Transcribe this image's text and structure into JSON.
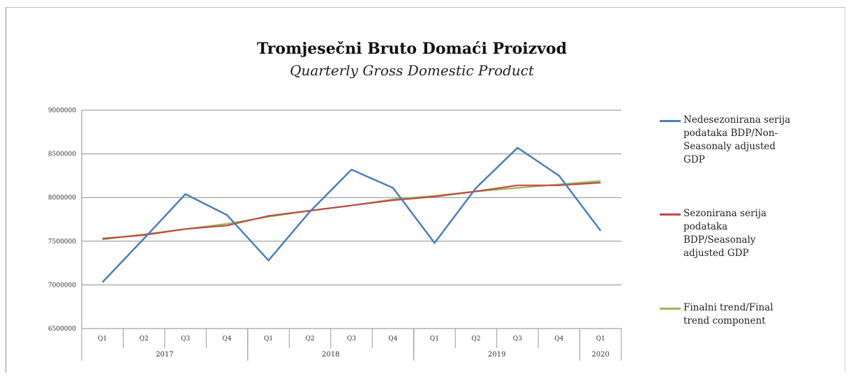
{
  "chart_data": {
    "type": "line",
    "title": "Tromjesečni Bruto Domaći Proizvod",
    "subtitle": "Quarterly Gross Domestic Product",
    "categories": [
      "Q1",
      "Q2",
      "Q3",
      "Q4",
      "Q1",
      "Q2",
      "Q3",
      "Q4",
      "Q1",
      "Q2",
      "Q3",
      "Q4",
      "Q1"
    ],
    "years": [
      {
        "label": "2017",
        "start": 0,
        "count": 4
      },
      {
        "label": "2018",
        "start": 4,
        "count": 4
      },
      {
        "label": "2019",
        "start": 8,
        "count": 4
      },
      {
        "label": "2020",
        "start": 12,
        "count": 1
      }
    ],
    "ylim": [
      6500000,
      9000000
    ],
    "yticks": [
      6500000,
      7000000,
      7500000,
      8000000,
      8500000,
      9000000
    ],
    "ytick_labels": [
      "6500000",
      "7000000",
      "7500000",
      "8000000",
      "8500000",
      "9000000"
    ],
    "grid": true,
    "legend_position": "right",
    "series": [
      {
        "name": "Nedesezonirana serija podataka BDP/Non-Seasonaly adjusted GDP",
        "color": "#4a7ebb",
        "values": [
          7030000,
          7530000,
          8040000,
          7800000,
          7280000,
          7840000,
          8320000,
          8110000,
          7480000,
          8110000,
          8570000,
          8250000,
          7620000
        ]
      },
      {
        "name": "Sezonirana serija podataka BDP/Seasonaly adjusted GDP",
        "color": "#be4b48",
        "values": [
          7530000,
          7570000,
          7640000,
          7680000,
          7790000,
          7850000,
          7910000,
          7970000,
          8010000,
          8070000,
          8140000,
          8140000,
          8170000
        ]
      },
      {
        "name": "Finalni trend/Final trend component",
        "color": "#98b954",
        "values": [
          7520000,
          7580000,
          7640000,
          7700000,
          7780000,
          7850000,
          7910000,
          7980000,
          8020000,
          8070000,
          8110000,
          8150000,
          8190000
        ]
      }
    ]
  }
}
